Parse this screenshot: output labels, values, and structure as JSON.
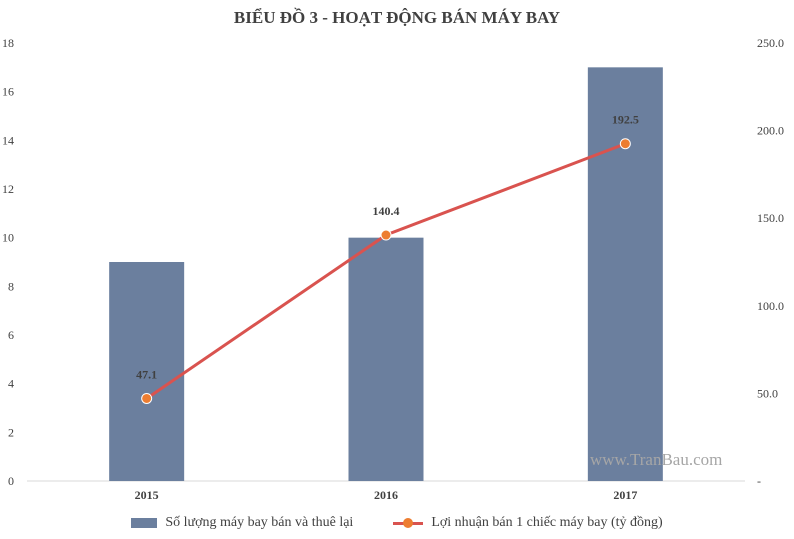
{
  "chart_data": {
    "type": "bar",
    "title": "BIỂU ĐỒ 3 - HOẠT ĐỘNG BÁN MÁY BAY",
    "categories": [
      "2015",
      "2016",
      "2017"
    ],
    "series": [
      {
        "name": "Số lượng máy bay bán và thuê lại",
        "type": "bar",
        "axis": "left",
        "values": [
          9,
          10,
          17
        ],
        "color": "#6b7f9e"
      },
      {
        "name": "Lợi nhuận bán 1 chiếc máy bay (tỷ đồng)",
        "type": "line",
        "axis": "right",
        "values": [
          47.1,
          140.4,
          192.5
        ],
        "labels": [
          "47.1",
          "140.4",
          "192.5"
        ],
        "color": "#d9534f",
        "marker_color": "#ed7d31"
      }
    ],
    "y_left": {
      "ylim": [
        0,
        18
      ],
      "ticks": [
        "0",
        "2",
        "4",
        "6",
        "8",
        "10",
        "12",
        "14",
        "16",
        "18"
      ]
    },
    "y_right": {
      "ylim": [
        0,
        250
      ],
      "ticks": [
        "-",
        "50.0",
        "100.0",
        "150.0",
        "200.0",
        "250.0"
      ]
    },
    "xlabel": "",
    "ylabel": "",
    "grid": false,
    "legend_position": "bottom"
  },
  "watermark": "www.TranBau.com"
}
